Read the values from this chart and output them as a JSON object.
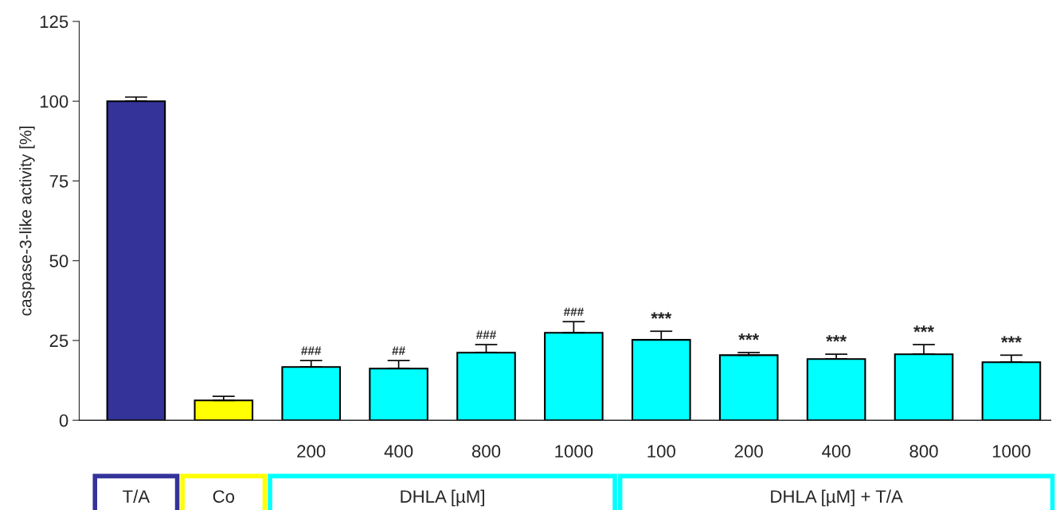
{
  "chart_data": {
    "type": "bar",
    "ylabel": "caspase-3-like activity [%]",
    "categories": [
      null,
      null,
      "200",
      "400",
      "800",
      "1000",
      "100",
      "200",
      "400",
      "800",
      "1000"
    ],
    "series": [
      {
        "colors": [
          "#333399",
          "#ffff00",
          "#00ffff",
          "#00ffff",
          "#00ffff",
          "#00ffff",
          null,
          null,
          null,
          null,
          null
        ],
        "values": [
          100,
          6.2,
          16.7,
          16.2,
          21.2,
          27.4,
          null,
          null,
          null,
          null,
          null
        ],
        "errors": [
          1.3,
          1.3,
          2.0,
          2.5,
          2.5,
          3.5,
          null,
          null,
          null,
          null,
          null
        ],
        "value_labels": [
          null,
          null,
          "###",
          "##",
          "###",
          "###",
          null,
          null,
          null,
          null,
          null
        ]
      },
      {
        "color": "#00ffff",
        "values": [
          null,
          null,
          null,
          null,
          null,
          null,
          25.2,
          20.4,
          19.2,
          20.7,
          18.2
        ],
        "errors": [
          null,
          null,
          null,
          null,
          null,
          null,
          2.7,
          0.8,
          1.5,
          3.0,
          2.2
        ],
        "value_labels": [
          null,
          null,
          null,
          null,
          null,
          null,
          "***",
          "***",
          "***",
          "***",
          "***"
        ]
      }
    ],
    "annotations": [
      "T/A",
      "Co",
      "DHLA [µM]",
      "DHLA [µM] + T/A"
    ],
    "ylim": [
      0,
      125
    ],
    "yticks": [
      0,
      25,
      50,
      75,
      100,
      125
    ],
    "grid": false,
    "legend": false
  }
}
